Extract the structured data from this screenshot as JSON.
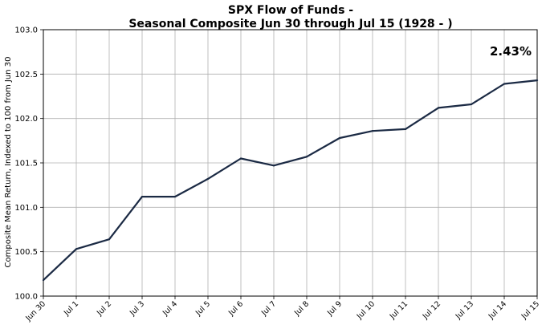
{
  "chart_data": {
    "type": "line",
    "title": "SPX Flow of Funds -",
    "subtitle": "Seasonal Composite Jun 30 through Jul 15 (1928 - )",
    "xlabel": "",
    "ylabel": "Composite Mean Return, Indexed to 100 from Jun 30",
    "annotation": "2.43%",
    "categories": [
      "Jun 30",
      "Jul 1",
      "Jul 2",
      "Jul 3",
      "Jul 4",
      "Jul 5",
      "Jul 6",
      "Jul 7",
      "Jul 8",
      "Jul 9",
      "Jul 10",
      "Jul 11",
      "Jul 12",
      "Jul 13",
      "Jul 14",
      "Jul 15"
    ],
    "values": [
      100.18,
      100.53,
      100.64,
      101.12,
      101.12,
      101.32,
      101.55,
      101.47,
      101.57,
      101.78,
      101.86,
      101.88,
      102.12,
      102.16,
      102.39,
      102.43
    ],
    "ylim": [
      100.0,
      103.0
    ],
    "yticks": [
      100.0,
      100.5,
      101.0,
      101.5,
      102.0,
      102.5,
      103.0
    ],
    "ytick_labels": [
      "100.0",
      "100.5",
      "101.0",
      "101.5",
      "102.0",
      "102.5",
      "103.0"
    ],
    "grid": true,
    "line_color": "#1b2a44",
    "grid_color": "#b0b0b0"
  }
}
